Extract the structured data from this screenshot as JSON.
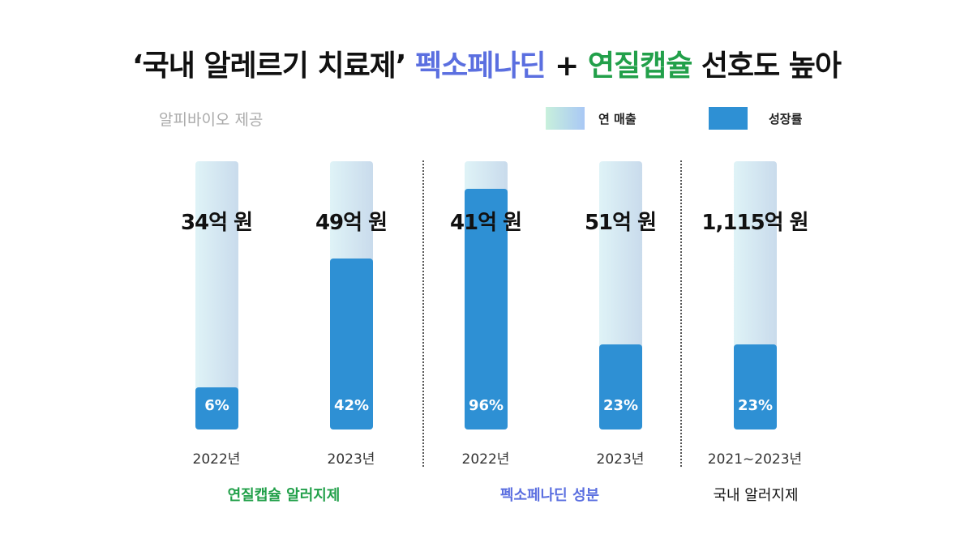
{
  "title": {
    "part1": "‘국내 알레르기 치료제’ ",
    "part2": "펙소페나딘",
    "part3": " + ",
    "part4": "연질캡슐",
    "part5": " 선호도 높아"
  },
  "source": "알피바이오 제공",
  "legend": [
    {
      "label": "연 매출"
    },
    {
      "label": "성장률"
    }
  ],
  "colors": {
    "blue_title": "#5b6fe0",
    "green": "#22a04a",
    "bar": "#2e90d4"
  },
  "chart_data": {
    "type": "bar",
    "title": "‘국내 알레르기 치료제’ 펙소페나딘 + 연질캡슐 선호도 높아",
    "groups": [
      {
        "label": "연질캡슐 알러지제",
        "bars": [
          {
            "year": "2022년",
            "sales": "34억 원",
            "growth": "6%",
            "fill": 0.157
          },
          {
            "year": "2023년",
            "sales": "49억 원",
            "growth": "42%",
            "fill": 0.64
          }
        ]
      },
      {
        "label": "펙소페나딘 성분",
        "bars": [
          {
            "year": "2022년",
            "sales": "41억 원",
            "growth": "96%",
            "fill": 0.9
          },
          {
            "year": "2023년",
            "sales": "51억 원",
            "growth": "23%",
            "fill": 0.317
          }
        ]
      },
      {
        "label": "국내 알러지제",
        "bars": [
          {
            "year": "2021~2023년",
            "sales": "1,115억 원",
            "growth": "23%",
            "fill": 0.317
          }
        ]
      }
    ]
  }
}
